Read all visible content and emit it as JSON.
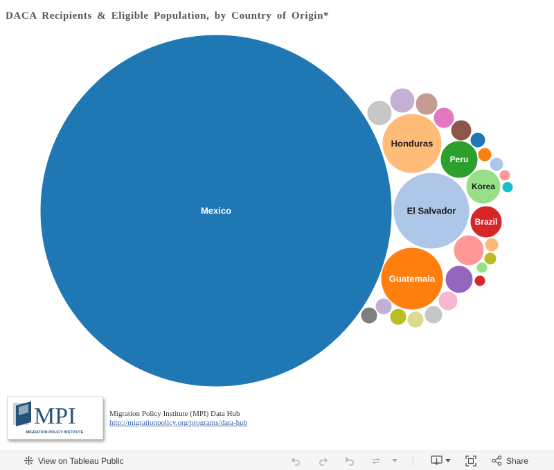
{
  "title": "DACA Recipients & Eligible Population, by Country of Origin*",
  "chart_data": {
    "type": "bubble",
    "bubbles": [
      {
        "label": "Mexico",
        "color": "#1f77b4"
      },
      {
        "label": "El Salvador",
        "color": "#aec7e8"
      },
      {
        "label": "Guatemala",
        "color": "#ff7f0e"
      },
      {
        "label": "Honduras",
        "color": "#ffbb78"
      },
      {
        "label": "Peru",
        "color": "#2ca02c"
      },
      {
        "label": "Korea",
        "color": "#98df8a"
      },
      {
        "label": "Brazil",
        "color": "#d62728"
      },
      {
        "label": "",
        "color": "#ff9896"
      },
      {
        "label": "",
        "color": "#9467bd"
      },
      {
        "label": "",
        "color": "#c5b0d5"
      },
      {
        "label": "",
        "color": "#c49c94"
      },
      {
        "label": "",
        "color": "#c7c7c7"
      },
      {
        "label": "",
        "color": "#e377c2"
      },
      {
        "label": "",
        "color": "#8c564b"
      },
      {
        "label": "",
        "color": "#f7b6d2"
      },
      {
        "label": "",
        "color": "#1f77b4"
      },
      {
        "label": "",
        "color": "#ff7f0e"
      },
      {
        "label": "",
        "color": "#aec7e8"
      },
      {
        "label": "",
        "color": "#ff9896"
      },
      {
        "label": "",
        "color": "#17becf"
      },
      {
        "label": "",
        "color": "#ffbb78"
      },
      {
        "label": "",
        "color": "#bcbd22"
      },
      {
        "label": "",
        "color": "#98df8a"
      },
      {
        "label": "",
        "color": "#d62728"
      },
      {
        "label": "",
        "color": "#c5b0d5"
      },
      {
        "label": "",
        "color": "#7f7f7f"
      },
      {
        "label": "",
        "color": "#bcbd22"
      },
      {
        "label": "",
        "color": "#dbdb8d"
      },
      {
        "label": "",
        "color": "#c7c7c7"
      }
    ]
  },
  "logo": {
    "text": "MPI",
    "tagline": "MIGRATION POLICY INSTITUTE",
    "color": "#26527a"
  },
  "source": {
    "name": "Migration Policy Institute (MPI) Data Hub",
    "url": "http://migrationpolicy.org/programs/data-hub"
  },
  "toolbar": {
    "view_label": "View on Tableau Public",
    "share_label": "Share",
    "icons": [
      "tableau-icon",
      "undo-icon",
      "redo-icon",
      "revert-icon",
      "refresh-icon",
      "pause-icon",
      "download-icon",
      "fullscreen-icon",
      "share-icon"
    ]
  }
}
